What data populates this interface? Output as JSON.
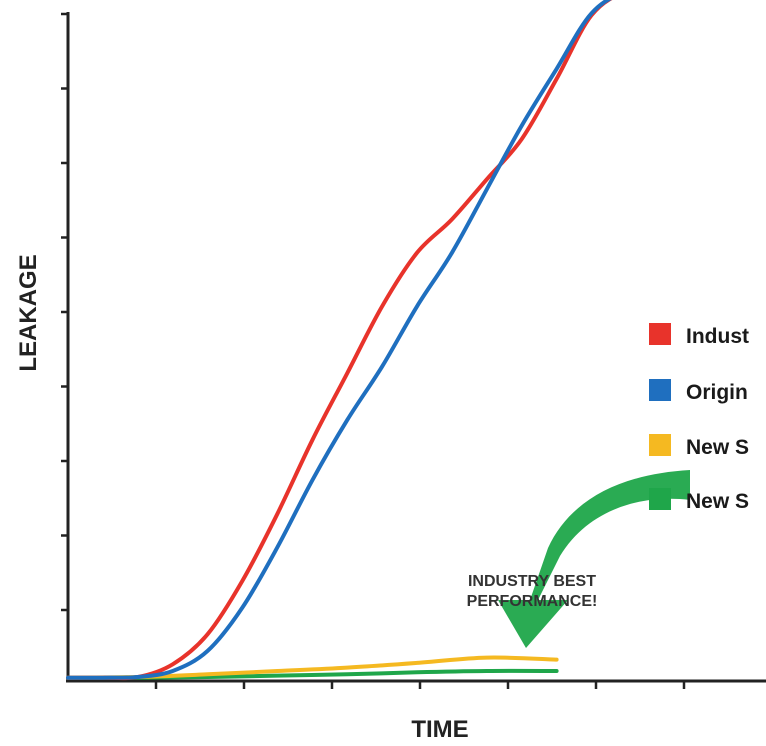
{
  "chart_data": {
    "type": "line",
    "title": "",
    "xlabel": "TIME",
    "ylabel": "LEAKAGE",
    "xlim": [
      0,
      10
    ],
    "ylim": [
      0,
      10
    ],
    "x_tick_count": 8,
    "y_tick_count": 9,
    "grid": false,
    "legend_position": "right",
    "series": [
      {
        "name": "Indust",
        "color": "#e8332b",
        "x": [
          0,
          0.5,
          1,
          1.5,
          2,
          2.5,
          3,
          3.5,
          4,
          4.5,
          5,
          5.5,
          6,
          6.5,
          7,
          7.5,
          8,
          8.5,
          9.3
        ],
        "y": [
          0.05,
          0.05,
          0.06,
          0.25,
          0.7,
          1.5,
          2.5,
          3.6,
          4.6,
          5.6,
          6.4,
          6.9,
          7.5,
          8.1,
          9.0,
          9.95,
          10.3,
          10.3,
          10.3
        ]
      },
      {
        "name": "Origin",
        "color": "#1f6fbf",
        "x": [
          0,
          0.5,
          1,
          1.5,
          2,
          2.5,
          3,
          3.5,
          4,
          4.5,
          5,
          5.5,
          6,
          6.5,
          7,
          7.5,
          8,
          8.5,
          9.3
        ],
        "y": [
          0.05,
          0.05,
          0.06,
          0.15,
          0.45,
          1.1,
          2.0,
          3.0,
          3.9,
          4.7,
          5.6,
          6.4,
          7.35,
          8.3,
          9.15,
          9.98,
          10.3,
          10.3,
          10.3
        ]
      },
      {
        "name": "New S",
        "color": "#f5b921",
        "x": [
          0,
          1,
          2,
          3,
          4,
          5,
          6,
          7
        ],
        "y": [
          0.05,
          0.06,
          0.1,
          0.15,
          0.2,
          0.27,
          0.35,
          0.32
        ]
      },
      {
        "name": "New S",
        "color": "#1fa64a",
        "x": [
          0,
          1,
          2,
          3,
          4,
          5,
          6,
          7
        ],
        "y": [
          0.05,
          0.05,
          0.06,
          0.08,
          0.1,
          0.13,
          0.15,
          0.15
        ]
      }
    ],
    "annotation": {
      "lines": [
        "INDUSTRY BEST",
        "PERFORMANCE!"
      ],
      "arrow_color": "#1fa64a"
    }
  }
}
